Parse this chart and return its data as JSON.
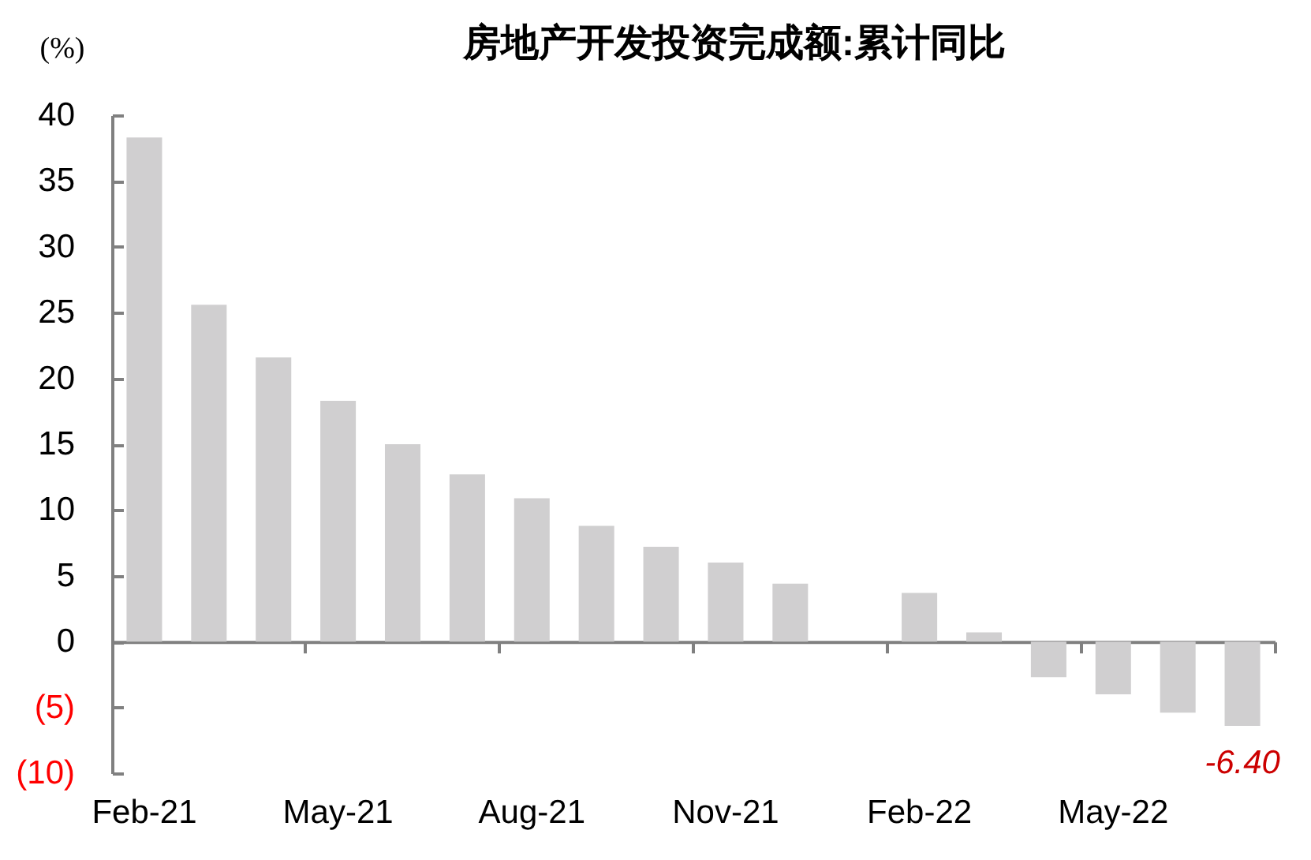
{
  "chart_data": {
    "type": "bar",
    "title": "房地产开发投资完成额:累计同比",
    "ylabel": "(%)",
    "categories": [
      "Feb-21",
      null,
      null,
      "May-21",
      null,
      null,
      "Aug-21",
      null,
      null,
      "Nov-21",
      null,
      null,
      "Feb-22",
      null,
      null,
      "May-22",
      null,
      null
    ],
    "values": [
      38.3,
      25.6,
      21.6,
      18.3,
      15.0,
      12.7,
      10.9,
      8.8,
      7.2,
      6.0,
      4.4,
      null,
      3.7,
      0.7,
      -2.7,
      -4.0,
      -5.4,
      -6.4
    ],
    "value_labels": [
      null,
      null,
      null,
      null,
      null,
      null,
      null,
      null,
      null,
      null,
      null,
      null,
      null,
      null,
      null,
      null,
      null,
      "-6.40"
    ],
    "color": "#d0cfd0",
    "ylim": [
      -10,
      40
    ],
    "yticks": [
      {
        "value": -10,
        "label": "(10)"
      },
      {
        "value": -5,
        "label": "(5)"
      },
      0,
      5,
      10,
      15,
      20,
      25,
      30,
      35,
      40
    ]
  }
}
